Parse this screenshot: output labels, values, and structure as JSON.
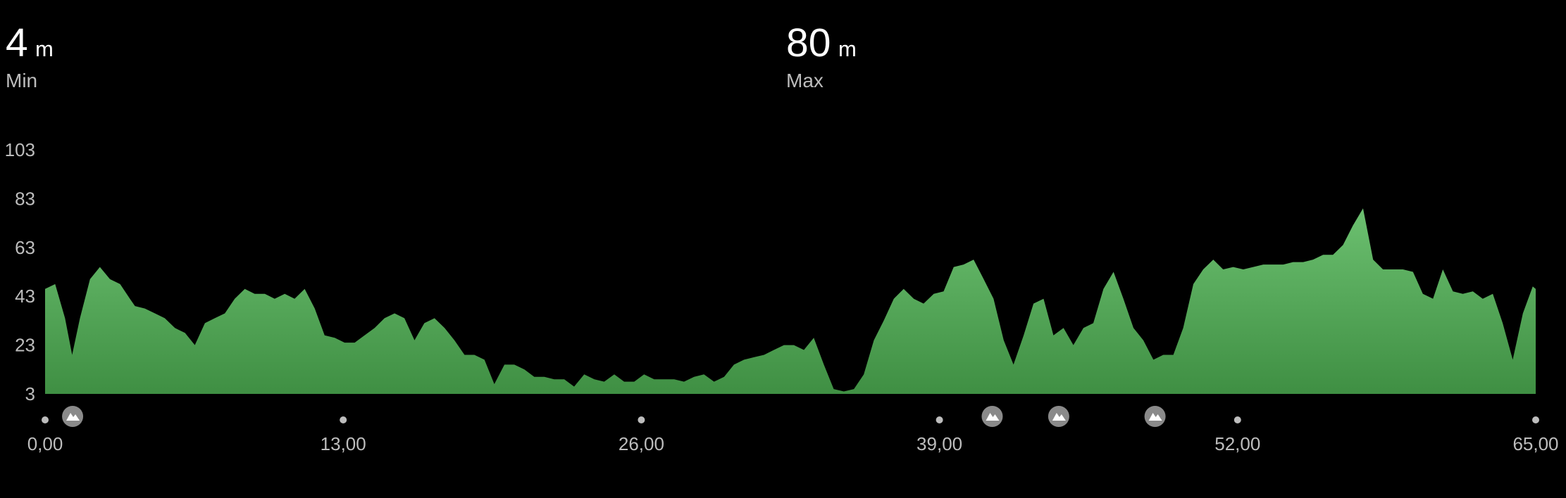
{
  "stats": [
    {
      "value": "4",
      "unit": "m",
      "label": "Min"
    },
    {
      "value": "80",
      "unit": "m",
      "label": "Max"
    }
  ],
  "chart_data": {
    "type": "area",
    "color": "#5cb361",
    "x": [
      0,
      0.44,
      0.87,
      1.18,
      1.52,
      1.96,
      2.39,
      2.83,
      3.27,
      3.7,
      3.92,
      4.35,
      4.79,
      5.22,
      5.66,
      6.1,
      6.53,
      6.97,
      7.4,
      7.84,
      8.27,
      8.71,
      9.14,
      9.58,
      10.01,
      10.45,
      10.88,
      11.32,
      11.76,
      12.19,
      12.63,
      13.06,
      13.5,
      13.93,
      14.37,
      14.8,
      15.24,
      15.67,
      16.11,
      16.54,
      16.98,
      17.42,
      17.85,
      18.29,
      18.72,
      19.16,
      19.59,
      20.03,
      20.46,
      20.9,
      21.33,
      21.77,
      22.2,
      22.64,
      23.07,
      23.51,
      23.95,
      24.38,
      24.82,
      25.25,
      25.69,
      26.12,
      26.56,
      26.99,
      27.43,
      27.86,
      28.3,
      28.73,
      29.17,
      29.61,
      30.04,
      30.48,
      30.91,
      31.35,
      31.78,
      32.22,
      32.65,
      33.09,
      33.52,
      33.96,
      34.39,
      34.83,
      35.27,
      35.7,
      36.14,
      36.57,
      37.01,
      37.44,
      37.88,
      38.31,
      38.75,
      39.18,
      39.62,
      40.05,
      40.49,
      40.93,
      41.36,
      41.8,
      42.23,
      42.67,
      43.1,
      43.54,
      43.97,
      44.41,
      44.84,
      45.28,
      45.71,
      46.15,
      46.59,
      47.02,
      47.46,
      47.89,
      48.33,
      48.76,
      49.2,
      49.63,
      50.07,
      50.5,
      50.94,
      51.37,
      51.81,
      52.25,
      52.68,
      53.12,
      53.55,
      53.99,
      54.42,
      54.86,
      55.29,
      55.73,
      56.16,
      56.6,
      57.03,
      57.47,
      57.91,
      58.34,
      58.78,
      59.21,
      59.65,
      60.08,
      60.52,
      60.95,
      61.39,
      61.82,
      62.26,
      62.69,
      63.13,
      63.56,
      64.0,
      64.44,
      64.87,
      65
    ],
    "values": [
      46,
      48,
      34,
      19,
      34,
      50,
      55,
      50,
      48,
      42,
      39,
      38,
      36,
      34,
      30,
      28,
      23,
      32,
      34,
      36,
      42,
      46,
      44,
      44,
      42,
      44,
      42,
      46,
      38,
      27,
      26,
      24,
      24,
      27,
      30,
      34,
      36,
      34,
      25,
      32,
      34,
      30,
      25,
      19,
      19,
      17,
      7,
      15,
      15,
      13,
      10,
      10,
      9,
      9,
      6,
      11,
      9,
      8,
      11,
      8,
      8,
      11,
      9,
      9,
      9,
      8,
      10,
      11,
      8,
      10,
      15,
      17,
      18,
      19,
      21,
      23,
      23,
      21,
      26,
      15,
      5,
      4,
      5,
      11,
      25,
      33,
      42,
      46,
      42,
      40,
      44,
      45,
      55,
      56,
      58,
      50,
      42,
      25,
      15,
      27,
      40,
      42,
      27,
      30,
      23,
      30,
      32,
      46,
      53,
      42,
      30,
      25,
      17,
      19,
      19,
      30,
      48,
      54,
      58,
      54,
      55,
      54,
      55,
      56,
      56,
      56,
      57,
      57,
      58,
      60,
      60,
      64,
      72,
      79,
      58,
      54,
      54,
      54,
      53,
      44,
      42,
      54,
      45,
      44,
      45,
      42,
      44,
      32,
      17,
      36,
      47,
      46
    ],
    "climb_markers": [
      1.2,
      41.3,
      44.2,
      48.4
    ],
    "xlim": [
      0,
      65
    ],
    "xticks": [
      {
        "value": 0,
        "label": "0,00"
      },
      {
        "value": 13,
        "label": "13,00"
      },
      {
        "value": 26,
        "label": "26,00"
      },
      {
        "value": 39,
        "label": "39,00"
      },
      {
        "value": 52,
        "label": "52,00"
      },
      {
        "value": 65,
        "label": "65,00"
      }
    ],
    "ylim": [
      3,
      103
    ],
    "yticks": [
      3,
      23,
      43,
      63,
      83,
      103
    ]
  }
}
